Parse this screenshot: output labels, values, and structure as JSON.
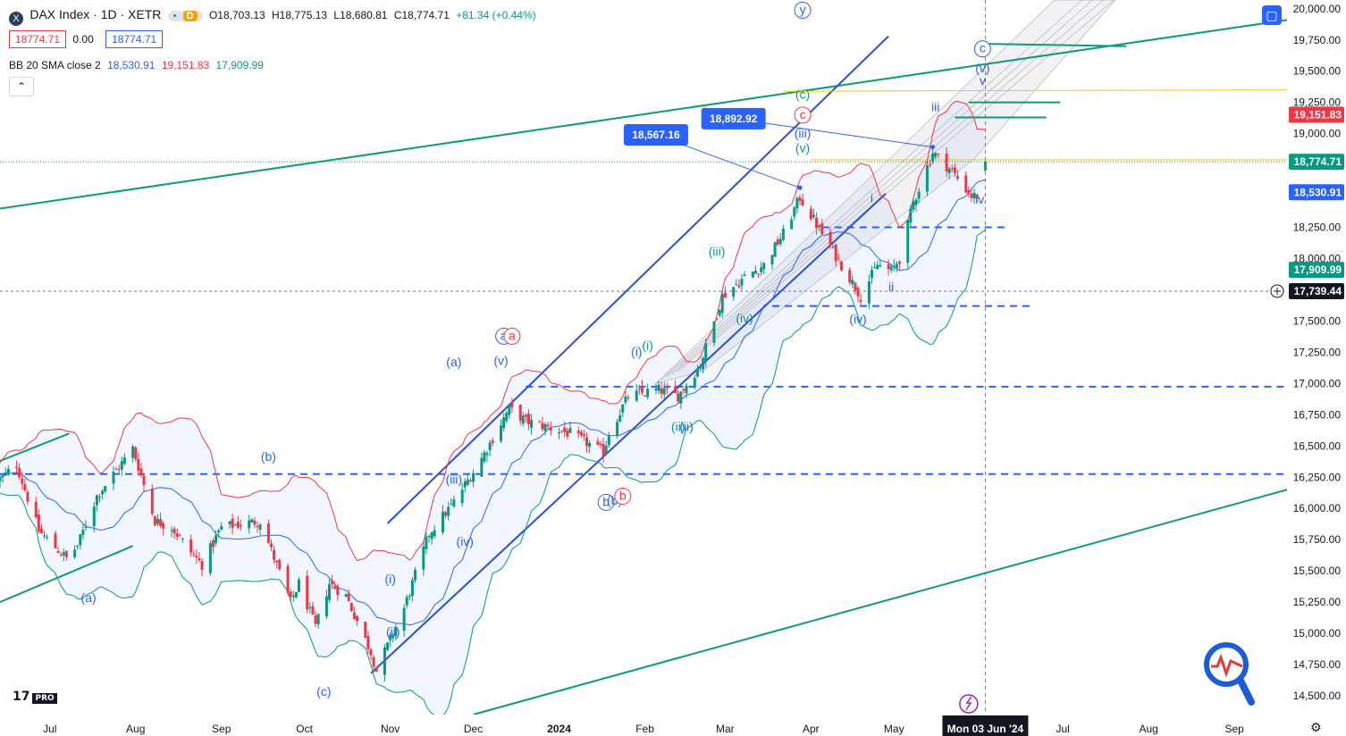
{
  "header": {
    "symbol_icon": "X",
    "title": "DAX Index · 1D · XETR",
    "status_dot": "•",
    "status_badge": "D",
    "ohlc": {
      "o": "O18,703.13",
      "h": "H18,775.13",
      "l": "L18,680.81",
      "c": "C18,774.71",
      "chg": "+81.34 (+0.44%)"
    },
    "sell_price": "18774.71",
    "spread": "0.00",
    "buy_price": "18774.71",
    "indicator_name": "BB 20 SMA close 2",
    "indicator_basis": "18,530.91",
    "indicator_upper": "19,151.83",
    "indicator_lower": "17,909.99",
    "collapse_icon": "chevron-up-icon",
    "logo_text": "17",
    "logo_badge": "PRO"
  },
  "colors": {
    "up": "#089981",
    "down": "#f23645",
    "bb_upper": "#f23645",
    "bb_lower": "#089981",
    "bb_basis": "#2962ff",
    "channel_blue": "#2850d2",
    "trend_green": "#0f9a78",
    "labels_blue": "#2962ff",
    "labels_red": "#f23645"
  },
  "chart_data": {
    "type": "candlestick",
    "title": "DAX Index · 1D · XETR",
    "y_scale": "linear",
    "ylim": [
      14350,
      20070
    ],
    "x_range": [
      "2023-06-13",
      "2024-09-20"
    ],
    "y_ticks": [
      "20,000.00",
      "19,750.00",
      "19,500.00",
      "19,250.00",
      "19,000.00",
      "18,750.00",
      "18,500.00",
      "18,250.00",
      "18,000.00",
      "17,750.00",
      "17,500.00",
      "17,250.00",
      "17,000.00",
      "16,750.00",
      "16,500.00",
      "16,250.00",
      "16,000.00",
      "15,750.00",
      "15,500.00",
      "15,250.00",
      "15,000.00",
      "14,750.00",
      "14,500.00"
    ],
    "x_ticks": [
      {
        "label": "Jul",
        "date": "2023-07-01"
      },
      {
        "label": "Aug",
        "date": "2023-08-01"
      },
      {
        "label": "Sep",
        "date": "2023-09-01"
      },
      {
        "label": "Oct",
        "date": "2023-10-01"
      },
      {
        "label": "Nov",
        "date": "2023-11-01"
      },
      {
        "label": "Dec",
        "date": "2023-12-01"
      },
      {
        "label": "2024",
        "date": "2024-01-01"
      },
      {
        "label": "Feb",
        "date": "2024-02-01"
      },
      {
        "label": "Mar",
        "date": "2024-03-01"
      },
      {
        "label": "Apr",
        "date": "2024-04-01"
      },
      {
        "label": "May",
        "date": "2024-05-01"
      },
      {
        "label": "Jul",
        "date": "2024-07-01"
      },
      {
        "label": "Aug",
        "date": "2024-08-01"
      },
      {
        "label": "Sep",
        "date": "2024-09-01"
      }
    ],
    "crosshair_date_label": "Mon 03 Jun '24",
    "crosshair_price_label": "17,739.44",
    "price_labels": [
      {
        "text": "19,151.83",
        "value": 19151.83,
        "color": "#f23645"
      },
      {
        "text": "18,774.71",
        "value": 18774.71,
        "color": "#089981"
      },
      {
        "text": "18,530.91",
        "value": 18530.91,
        "color": "#2962ff"
      },
      {
        "text": "17,909.99",
        "value": 17909.99,
        "color": "#089981"
      },
      {
        "text": "17,739.44",
        "value": 17739.44,
        "color": "#131722"
      }
    ],
    "anchor_points": [
      {
        "date": "2023-06-13",
        "close": 16230
      },
      {
        "date": "2023-06-19",
        "close": 16350
      },
      {
        "date": "2023-06-27",
        "close": 15820
      },
      {
        "date": "2023-07-07",
        "close": 15600
      },
      {
        "date": "2023-07-11",
        "close": 15700
      },
      {
        "date": "2023-07-18",
        "close": 16100
      },
      {
        "date": "2023-07-31",
        "close": 16480
      },
      {
        "date": "2023-08-08",
        "close": 15900
      },
      {
        "date": "2023-08-14",
        "close": 15850
      },
      {
        "date": "2023-08-21",
        "close": 15650
      },
      {
        "date": "2023-08-25",
        "close": 15550
      },
      {
        "date": "2023-09-01",
        "close": 15850
      },
      {
        "date": "2023-09-15",
        "close": 15900
      },
      {
        "date": "2023-09-26",
        "close": 15250
      },
      {
        "date": "2023-09-29",
        "close": 15400
      },
      {
        "date": "2023-10-05",
        "close": 15050
      },
      {
        "date": "2023-10-10",
        "close": 15400
      },
      {
        "date": "2023-10-16",
        "close": 15300
      },
      {
        "date": "2023-10-25",
        "close": 14850
      },
      {
        "date": "2023-10-27",
        "close": 14700
      },
      {
        "date": "2023-11-01",
        "close": 14950
      },
      {
        "date": "2023-11-06",
        "close": 15200
      },
      {
        "date": "2023-11-15",
        "close": 15800
      },
      {
        "date": "2023-11-24",
        "close": 16050
      },
      {
        "date": "2023-12-04",
        "close": 16400
      },
      {
        "date": "2023-12-14",
        "close": 16800
      },
      {
        "date": "2023-12-20",
        "close": 16700
      },
      {
        "date": "2024-01-05",
        "close": 16600
      },
      {
        "date": "2024-01-17",
        "close": 16450
      },
      {
        "date": "2024-01-19",
        "close": 16600
      },
      {
        "date": "2024-01-26",
        "close": 16900
      },
      {
        "date": "2024-02-06",
        "close": 16950
      },
      {
        "date": "2024-02-13",
        "close": 16900
      },
      {
        "date": "2024-02-21",
        "close": 17150
      },
      {
        "date": "2024-02-29",
        "close": 17700
      },
      {
        "date": "2024-03-08",
        "close": 17850
      },
      {
        "date": "2024-03-15",
        "close": 17950
      },
      {
        "date": "2024-03-22",
        "close": 18200
      },
      {
        "date": "2024-03-28",
        "close": 18490
      },
      {
        "date": "2024-04-05",
        "close": 18200
      },
      {
        "date": "2024-04-12",
        "close": 17950
      },
      {
        "date": "2024-04-19",
        "close": 17700
      },
      {
        "date": "2024-04-25",
        "close": 17950
      },
      {
        "date": "2024-04-30",
        "close": 17900
      },
      {
        "date": "2024-05-03",
        "close": 18000
      },
      {
        "date": "2024-05-08",
        "close": 18450
      },
      {
        "date": "2024-05-15",
        "close": 18850
      },
      {
        "date": "2024-05-22",
        "close": 18700
      },
      {
        "date": "2024-05-29",
        "close": 18500
      },
      {
        "date": "2024-05-31",
        "close": 18500
      },
      {
        "date": "2024-06-03",
        "close": 18774.71
      }
    ],
    "last_candle": {
      "date": "2024-06-03",
      "open": 18703.13,
      "high": 18775.13,
      "low": 18680.81,
      "close": 18774.71
    },
    "bollinger": {
      "period": 20,
      "source": "close",
      "mult": 2,
      "basis": 18530.91,
      "upper": 19151.83,
      "lower": 17909.99
    },
    "trendlines": [
      {
        "name": "upper-channel-green",
        "color": "#0f9a78",
        "p1": {
          "date": "2023-06-13",
          "price": 18400
        },
        "p2": {
          "date": "2024-09-20",
          "price": 19910
        }
      },
      {
        "name": "lower-channel-green",
        "color": "#0f9a78",
        "p1": {
          "date": "2023-12-01",
          "price": 14350
        },
        "p2": {
          "date": "2024-09-20",
          "price": 16150
        }
      },
      {
        "name": "left-channel-upper",
        "color": "#0f9a78",
        "p1": {
          "date": "2023-06-13",
          "price": 16380
        },
        "p2": {
          "date": "2023-07-08",
          "price": 16600
        }
      },
      {
        "name": "left-channel-lower",
        "color": "#0f9a78",
        "p1": {
          "date": "2023-06-13",
          "price": 15250
        },
        "p2": {
          "date": "2023-07-31",
          "price": 15700
        }
      },
      {
        "name": "blue-channel-upper",
        "color": "#2850d2",
        "p1": {
          "date": "2023-10-31",
          "price": 15880
        },
        "p2": {
          "date": "2024-04-29",
          "price": 19780
        }
      },
      {
        "name": "blue-channel-lower",
        "color": "#2850d2",
        "p1": {
          "date": "2023-10-25",
          "price": 14680
        },
        "p2": {
          "date": "2024-04-28",
          "price": 18520
        }
      },
      {
        "name": "resistance-1",
        "color": "#0f9a78",
        "p1": {
          "date": "2024-05-31",
          "price": 19720
        },
        "p2": {
          "date": "2024-07-24",
          "price": 19700
        }
      },
      {
        "name": "resistance-2",
        "color": "#0f9a78",
        "p1": {
          "date": "2024-05-28",
          "price": 19250
        },
        "p2": {
          "date": "2024-06-30",
          "price": 19250
        }
      },
      {
        "name": "resistance-3",
        "color": "#0f9a78",
        "p1": {
          "date": "2024-05-23",
          "price": 19130
        },
        "p2": {
          "date": "2024-06-25",
          "price": 19130
        }
      },
      {
        "name": "target-yellow-upper",
        "color": "#f5c518",
        "p1": {
          "date": "2024-03-22",
          "price": 19340
        },
        "p2": {
          "date": "2024-09-20",
          "price": 19350
        }
      },
      {
        "name": "target-yellow-lower",
        "color": "#f5c518",
        "p1": {
          "date": "2024-04-01",
          "price": 18790
        },
        "p2": {
          "date": "2024-09-20",
          "price": 18790
        }
      }
    ],
    "horizontal_levels": [
      {
        "name": "dashed-16275",
        "price": 16275,
        "from": "2023-06-13",
        "to": "2024-09-20",
        "style": "dash"
      },
      {
        "name": "dashed-16975",
        "price": 16975,
        "from": "2023-12-20",
        "to": "2024-09-20",
        "style": "dash"
      },
      {
        "name": "dashed-17620",
        "price": 17620,
        "from": "2024-03-18",
        "to": "2024-06-20",
        "style": "dash"
      },
      {
        "name": "dashed-18250",
        "price": 18250,
        "from": "2024-04-05",
        "to": "2024-06-10",
        "style": "dash"
      },
      {
        "name": "dotted-crosshair",
        "price": 17739.44,
        "from": "2023-06-13",
        "to": "2024-09-20",
        "style": "dot"
      }
    ],
    "callouts": [
      {
        "text": "18,892.92",
        "target": {
          "date": "2024-05-15",
          "price": 18892.92
        },
        "label_at": {
          "date": "2024-03-04",
          "price": 19120
        }
      },
      {
        "text": "18,567.16",
        "target": {
          "date": "2024-03-28",
          "price": 18567.16
        },
        "label_at": {
          "date": "2024-02-05",
          "price": 18990
        }
      }
    ],
    "wave_labels": [
      {
        "t": "(a)",
        "date": "2023-07-15",
        "price": 15250,
        "color": "#2962ff"
      },
      {
        "t": "(b)",
        "date": "2023-09-18",
        "price": 16380,
        "color": "#2962ff"
      },
      {
        "t": "(c)",
        "date": "2023-10-08",
        "price": 14500,
        "color": "#2962ff"
      },
      {
        "t": "(i)",
        "date": "2023-11-01",
        "price": 15400,
        "color": "#2962ff"
      },
      {
        "t": "(ii)",
        "date": "2023-11-02",
        "price": 14980,
        "color": "#2962ff"
      },
      {
        "t": "(iii)",
        "date": "2023-11-24",
        "price": 16200,
        "color": "#2962ff"
      },
      {
        "t": "(iv)",
        "date": "2023-11-28",
        "price": 15700,
        "color": "#2962ff"
      },
      {
        "t": "(v)",
        "date": "2023-12-11",
        "price": 17150,
        "color": "#2962ff"
      },
      {
        "t": "(a)",
        "date": "2023-11-24",
        "price": 17140,
        "color": "#2962ff"
      },
      {
        "t": "a",
        "date": "2023-12-12",
        "price": 17350,
        "color": "#2962ff",
        "circle": true
      },
      {
        "t": "a",
        "date": "2023-12-15",
        "price": 17350,
        "color": "#f23645",
        "circle": true
      },
      {
        "t": "b",
        "date": "2024-01-18",
        "price": 16020,
        "color": "#2962ff",
        "circle": true
      },
      {
        "t": "(b)",
        "date": "2024-01-21",
        "price": 16030,
        "color": "#2962ff"
      },
      {
        "t": "b",
        "date": "2024-01-24",
        "price": 16070,
        "color": "#f23645",
        "circle": true
      },
      {
        "t": "(i)",
        "date": "2024-01-29",
        "price": 17220,
        "color": "#2962ff"
      },
      {
        "t": "(i)",
        "date": "2024-02-02",
        "price": 17270,
        "color": "#089981"
      },
      {
        "t": "(ii)",
        "date": "2024-02-13",
        "price": 16620,
        "color": "#089981"
      },
      {
        "t": "(ii)",
        "date": "2024-02-16",
        "price": 16620,
        "color": "#2962ff"
      },
      {
        "t": "(iii)",
        "date": "2024-02-27",
        "price": 18020,
        "color": "#089981"
      },
      {
        "t": "(iv)",
        "date": "2024-03-08",
        "price": 17490,
        "color": "#089981"
      },
      {
        "t": "(v)",
        "date": "2024-03-29",
        "price": 18850,
        "color": "#089981"
      },
      {
        "t": "(iii)",
        "date": "2024-03-29",
        "price": 18970,
        "color": "#2962ff"
      },
      {
        "t": "(c)",
        "date": "2024-03-29",
        "price": 19280,
        "color": "#089981"
      },
      {
        "t": "c",
        "date": "2024-03-29",
        "price": 19120,
        "color": "#f23645",
        "circle": true
      },
      {
        "t": "y",
        "date": "2024-03-29",
        "price": 19960,
        "color": "#2962ff",
        "circle": true
      },
      {
        "t": "(iv)",
        "date": "2024-04-18",
        "price": 17480,
        "color": "#2962ff"
      },
      {
        "t": "i",
        "date": "2024-04-23",
        "price": 18450,
        "color": "#2962ff"
      },
      {
        "t": "ii",
        "date": "2024-04-30",
        "price": 17740,
        "color": "#2962ff"
      },
      {
        "t": "iii",
        "date": "2024-05-16",
        "price": 19180,
        "color": "#2962ff"
      },
      {
        "t": "iv",
        "date": "2024-06-01",
        "price": 18440,
        "color": "#2962ff"
      },
      {
        "t": "v",
        "date": "2024-06-02",
        "price": 19390,
        "color": "#2962ff"
      },
      {
        "t": "(v)",
        "date": "2024-06-02",
        "price": 19490,
        "color": "#2962ff"
      },
      {
        "t": "c",
        "date": "2024-06-02",
        "price": 19650,
        "color": "#2962ff",
        "circle": true
      }
    ]
  }
}
